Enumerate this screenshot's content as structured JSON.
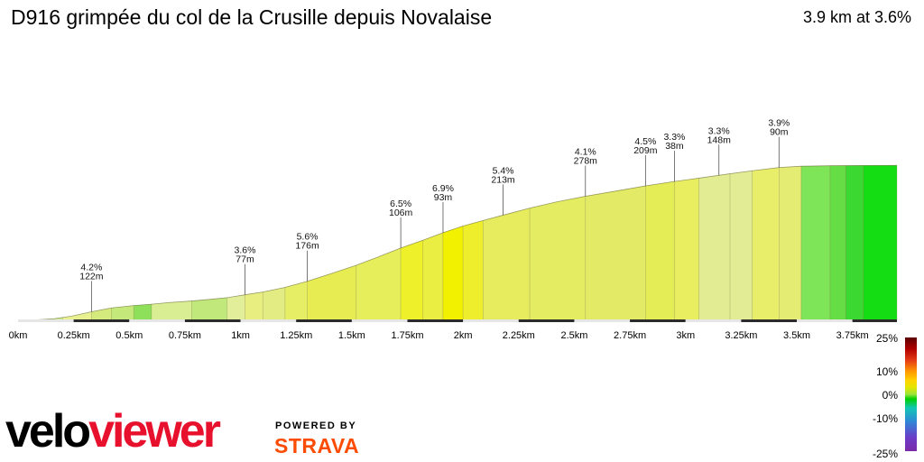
{
  "title": "D916 grimpée du col de la Crusille depuis Novalaise",
  "summary": "3.9 km at 3.6%",
  "chart_data": {
    "type": "area",
    "x_ticks": [
      "0km",
      "0.25km",
      "0.5km",
      "0.75km",
      "1km",
      "1.25km",
      "1.5km",
      "1.75km",
      "2km",
      "2.25km",
      "2.5km",
      "2.75km",
      "3km",
      "3.25km",
      "3.5km",
      "3.75km"
    ],
    "xlim": [
      0,
      3.95
    ],
    "profile": [
      {
        "d": 0,
        "h": 0
      },
      {
        "d": 0.08,
        "h": 0.4
      },
      {
        "d": 0.16,
        "h": 1.3
      },
      {
        "d": 0.24,
        "h": 3.5
      },
      {
        "d": 0.33,
        "h": 7.2
      },
      {
        "d": 0.42,
        "h": 10.4
      },
      {
        "d": 0.52,
        "h": 12.4
      },
      {
        "d": 0.6,
        "h": 13.5
      },
      {
        "d": 0.68,
        "h": 14.9
      },
      {
        "d": 0.78,
        "h": 16.2
      },
      {
        "d": 0.87,
        "h": 17.7
      },
      {
        "d": 0.94,
        "h": 19.0
      },
      {
        "d": 1.02,
        "h": 21.4
      },
      {
        "d": 1.1,
        "h": 23.7
      },
      {
        "d": 1.2,
        "h": 27.6
      },
      {
        "d": 1.3,
        "h": 32.7
      },
      {
        "d": 1.41,
        "h": 39.3
      },
      {
        "d": 1.52,
        "h": 46.1
      },
      {
        "d": 1.62,
        "h": 53.2
      },
      {
        "d": 1.72,
        "h": 60.6
      },
      {
        "d": 1.82,
        "h": 67.1
      },
      {
        "d": 1.91,
        "h": 73.4
      },
      {
        "d": 2.0,
        "h": 79.0
      },
      {
        "d": 2.09,
        "h": 83.6
      },
      {
        "d": 2.18,
        "h": 88.1
      },
      {
        "d": 2.3,
        "h": 94.0
      },
      {
        "d": 2.42,
        "h": 99.2
      },
      {
        "d": 2.55,
        "h": 103.9
      },
      {
        "d": 2.7,
        "h": 108.7
      },
      {
        "d": 2.82,
        "h": 112.6
      },
      {
        "d": 2.95,
        "h": 116.3
      },
      {
        "d": 3.06,
        "h": 119.1
      },
      {
        "d": 3.2,
        "h": 122.8
      },
      {
        "d": 3.3,
        "h": 125.3
      },
      {
        "d": 3.42,
        "h": 128.0
      },
      {
        "d": 3.52,
        "h": 129.1
      },
      {
        "d": 3.65,
        "h": 129.5
      },
      {
        "d": 3.8,
        "h": 129.7
      },
      {
        "d": 3.95,
        "h": 129.8
      }
    ],
    "segment_colors": [
      {
        "from": 0,
        "to": 0.1,
        "color": "#8ee05a"
      },
      {
        "from": 0.1,
        "to": 0.2,
        "color": "#c9ec88"
      },
      {
        "from": 0.2,
        "to": 0.33,
        "color": "#e8f090"
      },
      {
        "from": 0.33,
        "to": 0.42,
        "color": "#d4ea7c"
      },
      {
        "from": 0.42,
        "to": 0.52,
        "color": "#c4e87a"
      },
      {
        "from": 0.52,
        "to": 0.6,
        "color": "#8ee05a"
      },
      {
        "from": 0.6,
        "to": 0.78,
        "color": "#d9ee92"
      },
      {
        "from": 0.78,
        "to": 0.94,
        "color": "#c0e87a"
      },
      {
        "from": 0.94,
        "to": 1.02,
        "color": "#e2ee9a"
      },
      {
        "from": 1.02,
        "to": 1.1,
        "color": "#e8ef80"
      },
      {
        "from": 1.1,
        "to": 1.2,
        "color": "#e2ec82"
      },
      {
        "from": 1.2,
        "to": 1.3,
        "color": "#e6ee66"
      },
      {
        "from": 1.3,
        "to": 1.52,
        "color": "#e6ec52"
      },
      {
        "from": 1.52,
        "to": 1.72,
        "color": "#e6ee5c"
      },
      {
        "from": 1.72,
        "to": 1.82,
        "color": "#eef02a"
      },
      {
        "from": 1.82,
        "to": 1.91,
        "color": "#eaee42"
      },
      {
        "from": 1.91,
        "to": 2.0,
        "color": "#f2f200"
      },
      {
        "from": 2.0,
        "to": 2.09,
        "color": "#eeee2c"
      },
      {
        "from": 2.09,
        "to": 2.3,
        "color": "#e6ec5e"
      },
      {
        "from": 2.3,
        "to": 2.55,
        "color": "#e4ec62"
      },
      {
        "from": 2.55,
        "to": 2.82,
        "color": "#e2ea66"
      },
      {
        "from": 2.82,
        "to": 2.95,
        "color": "#e4ec56"
      },
      {
        "from": 2.95,
        "to": 3.06,
        "color": "#e8ee60"
      },
      {
        "from": 3.06,
        "to": 3.2,
        "color": "#e2ec92"
      },
      {
        "from": 3.2,
        "to": 3.3,
        "color": "#e2ec94"
      },
      {
        "from": 3.3,
        "to": 3.42,
        "color": "#e8ee6a"
      },
      {
        "from": 3.42,
        "to": 3.52,
        "color": "#e4ec74"
      },
      {
        "from": 3.52,
        "to": 3.65,
        "color": "#7ee458"
      },
      {
        "from": 3.65,
        "to": 3.72,
        "color": "#66dd44"
      },
      {
        "from": 3.72,
        "to": 3.8,
        "color": "#3ad830"
      },
      {
        "from": 3.8,
        "to": 3.95,
        "color": "#14dd14"
      }
    ],
    "annotations": [
      {
        "d": 0.33,
        "grade": "4.2%",
        "length": "122m"
      },
      {
        "d": 1.02,
        "grade": "3.6%",
        "length": "77m"
      },
      {
        "d": 1.3,
        "grade": "5.6%",
        "length": "176m"
      },
      {
        "d": 1.72,
        "grade": "6.5%",
        "length": "106m"
      },
      {
        "d": 1.91,
        "grade": "6.9%",
        "length": "93m"
      },
      {
        "d": 2.18,
        "grade": "5.4%",
        "length": "213m"
      },
      {
        "d": 2.55,
        "grade": "4.1%",
        "length": "278m"
      },
      {
        "d": 2.82,
        "grade": "4.5%",
        "length": "209m"
      },
      {
        "d": 2.95,
        "grade": "3.3%",
        "length": "38m"
      },
      {
        "d": 3.15,
        "grade": "3.3%",
        "length": "148m"
      },
      {
        "d": 3.42,
        "grade": "3.9%",
        "length": "90m"
      }
    ],
    "legend": {
      "labels": [
        "25%",
        "10%",
        "0%",
        "-10%",
        "-25%"
      ],
      "values": [
        25,
        10,
        0,
        -10,
        -25
      ]
    }
  },
  "branding": {
    "velo": "velo",
    "viewer": "viewer",
    "powered_by": "POWERED BY",
    "strava": "STRAVA"
  }
}
